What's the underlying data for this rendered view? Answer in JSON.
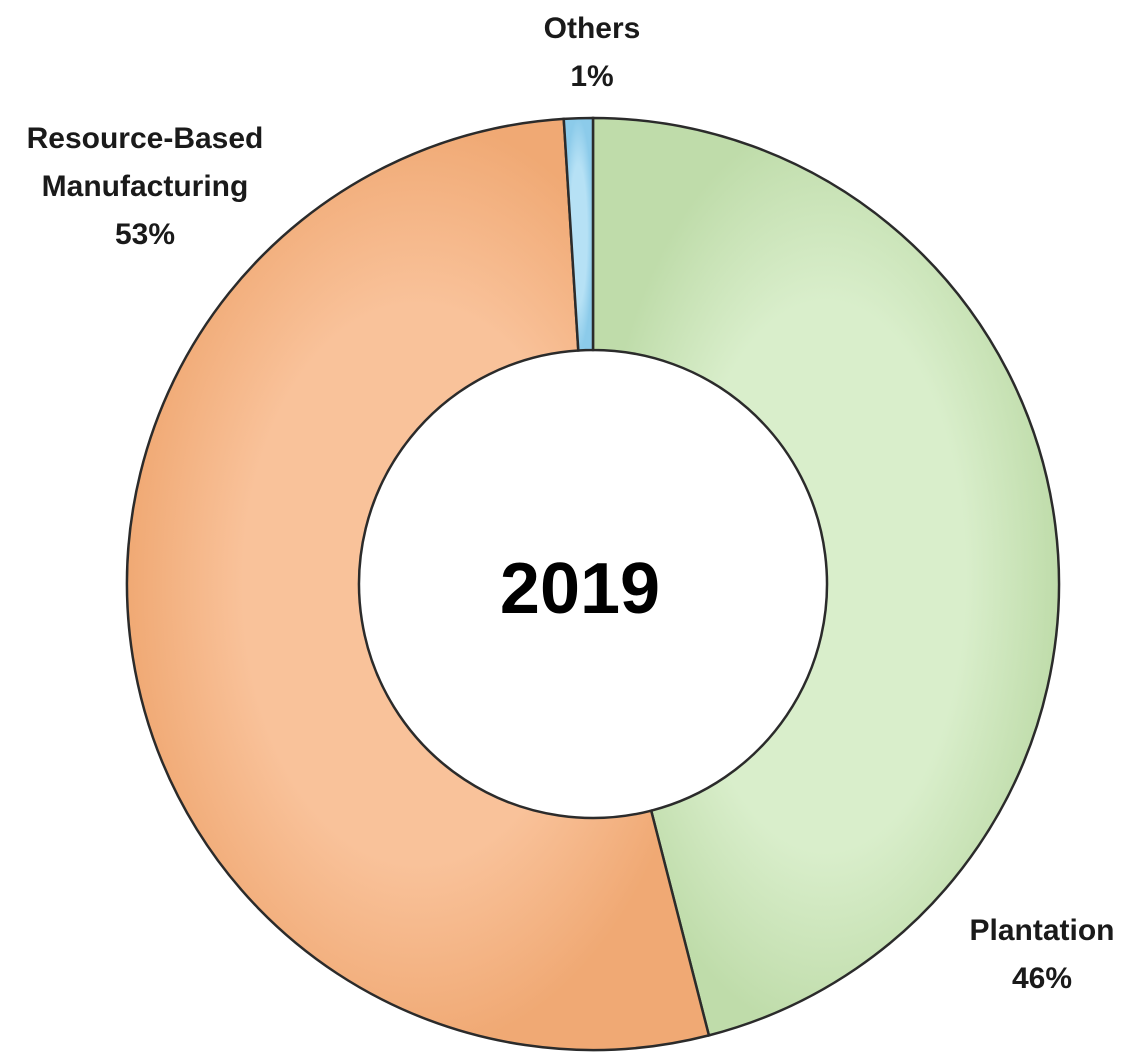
{
  "chart_data": {
    "type": "pie",
    "variant": "donut",
    "center_label": "2019",
    "slices": [
      {
        "label": "Plantation",
        "value_label": "46%",
        "value": 46,
        "color": "#cfe8bf"
      },
      {
        "label": "Resource-Based Manufacturing",
        "label_lines": [
          "Resource-Based",
          "Manufacturing"
        ],
        "value_label": "53%",
        "value": 53,
        "color": "#f8b98a"
      },
      {
        "label": "Others",
        "value_label": "1%",
        "value": 1,
        "color": "#a9daf2"
      }
    ],
    "legend": "none",
    "grid": false
  }
}
